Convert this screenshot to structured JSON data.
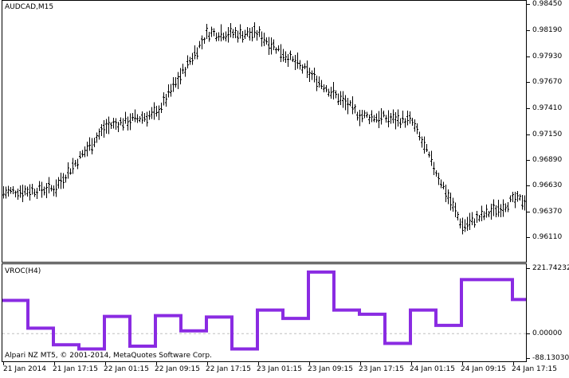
{
  "main_chart": {
    "title": "AUDCAD,M15",
    "y_ticks": [
      "0.98450",
      "0.98190",
      "0.97930",
      "0.97670",
      "0.97410",
      "0.97150",
      "0.96890",
      "0.96630",
      "0.96370",
      "0.96110"
    ]
  },
  "indicator": {
    "title": "VROC(H4)",
    "y_ticks": [
      "221.74232",
      "0.00000",
      "-88.13030"
    ],
    "line_color": "#8a2be2",
    "zero_line_color": "#c0c0c0"
  },
  "footer": {
    "copyright": "Alpari NZ MT5, © 2001-2014, MetaQuotes Software Corp."
  },
  "x_ticks": [
    "21 Jan 2014",
    "21 Jan 17:15",
    "22 Jan 01:15",
    "22 Jan 09:15",
    "22 Jan 17:15",
    "23 Jan 01:15",
    "23 Jan 09:15",
    "23 Jan 17:15",
    "24 Jan 01:15",
    "24 Jan 09:15",
    "24 Jan 17:15"
  ],
  "chart_data": [
    {
      "type": "line",
      "title": "AUDCAD,M15",
      "x": [
        "21 Jan 2014",
        "21 Jan 17:15",
        "22 Jan 01:15",
        "22 Jan 09:15",
        "22 Jan 17:15",
        "23 Jan 01:15",
        "23 Jan 09:15",
        "23 Jan 17:15",
        "24 Jan 01:15",
        "24 Jan 09:15",
        "24 Jan 17:15"
      ],
      "series": [
        {
          "values": [
            0.9656,
            0.966,
            0.9722,
            0.9735,
            0.9816,
            0.9815,
            0.9775,
            0.9733,
            0.9728,
            0.9622,
            0.9648
          ]
        }
      ],
      "ylim": [
        0.9595,
        0.9845
      ]
    },
    {
      "type": "line",
      "title": "VROC(H4)",
      "x": [
        "21 Jan 2014",
        "21 Jan 17:15",
        "22 Jan 01:15",
        "22 Jan 09:15",
        "22 Jan 17:15",
        "23 Jan 01:15",
        "23 Jan 09:15",
        "23 Jan 17:15",
        "24 Jan 01:15",
        "24 Jan 09:15",
        "24 Jan 17:15"
      ],
      "series": [
        {
          "values": [
            120,
            0,
            -60,
            62,
            65,
            85,
            222,
            70,
            -40,
            85,
            195
          ]
        }
      ],
      "ylim": [
        -88.1303,
        221.74232
      ]
    }
  ]
}
